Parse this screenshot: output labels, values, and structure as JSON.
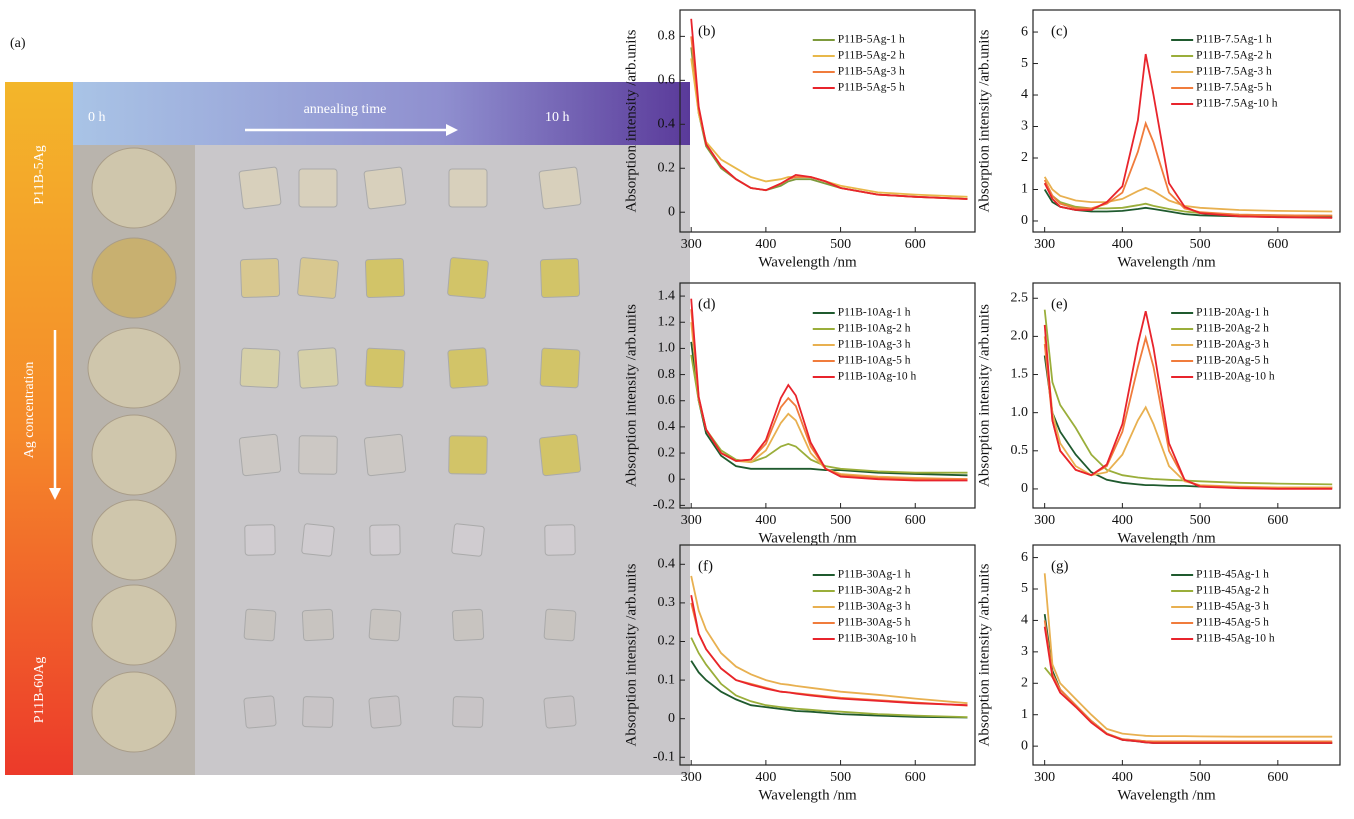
{
  "photo_panel": {
    "panel_label": "(a)",
    "start_time": "0 h",
    "arrow_label": "annealing time",
    "end_time": "10 h",
    "top_sample": "P11B-5Ag",
    "side_arrow_label": "Ag concentration",
    "bottom_sample": "P11B-60Ag"
  },
  "chart_data": [
    {
      "type": "line",
      "panel_label": "(b)",
      "x_label": "Wavelength /nm",
      "y_label": "Absorption intensity /arb.units",
      "x": [
        300,
        310,
        320,
        340,
        360,
        380,
        400,
        420,
        430,
        440,
        460,
        480,
        500,
        550,
        600,
        670
      ],
      "xlim": [
        285,
        680
      ],
      "xticks": [
        300,
        400,
        500,
        600
      ],
      "ylim": [
        -0.09,
        0.92
      ],
      "yticks": [
        0,
        0.2,
        0.4,
        0.6,
        0.8
      ],
      "series": [
        {
          "name": "P11B-5Ag-1 h",
          "color": "#7d9a3c",
          "values": [
            0.75,
            0.45,
            0.3,
            0.2,
            0.15,
            0.11,
            0.1,
            0.12,
            0.14,
            0.15,
            0.15,
            0.13,
            0.11,
            0.08,
            0.07,
            0.06
          ]
        },
        {
          "name": "P11B-5Ag-2 h",
          "color": "#e8b84a",
          "values": [
            0.7,
            0.45,
            0.32,
            0.24,
            0.2,
            0.16,
            0.14,
            0.15,
            0.16,
            0.16,
            0.16,
            0.14,
            0.12,
            0.09,
            0.08,
            0.07
          ]
        },
        {
          "name": "P11B-5Ag-3 h",
          "color": "#f07c3c",
          "values": [
            0.8,
            0.47,
            0.31,
            0.21,
            0.15,
            0.11,
            0.1,
            0.13,
            0.15,
            0.16,
            0.16,
            0.14,
            0.11,
            0.08,
            0.07,
            0.06
          ]
        },
        {
          "name": "P11B-5Ag-5 h",
          "color": "#e8242c",
          "values": [
            0.88,
            0.48,
            0.31,
            0.21,
            0.15,
            0.11,
            0.1,
            0.13,
            0.15,
            0.17,
            0.16,
            0.14,
            0.11,
            0.08,
            0.07,
            0.06
          ]
        }
      ]
    },
    {
      "type": "line",
      "panel_label": "(c)",
      "x_label": "Wavelength /nm",
      "y_label": "Absorption intensity /arb.units",
      "x": [
        300,
        310,
        320,
        340,
        360,
        380,
        400,
        420,
        430,
        440,
        460,
        480,
        500,
        550,
        600,
        670
      ],
      "xlim": [
        285,
        680
      ],
      "xticks": [
        300,
        400,
        500,
        600
      ],
      "ylim": [
        -0.35,
        6.7
      ],
      "yticks": [
        0,
        1,
        2,
        3,
        4,
        5,
        6
      ],
      "series": [
        {
          "name": "P11B-7.5Ag-1 h",
          "color": "#1f5a2e",
          "values": [
            1.0,
            0.6,
            0.45,
            0.35,
            0.3,
            0.3,
            0.32,
            0.38,
            0.42,
            0.38,
            0.3,
            0.22,
            0.18,
            0.15,
            0.13,
            0.12
          ]
        },
        {
          "name": "P11B-7.5Ag-2 h",
          "color": "#9aae3a",
          "values": [
            1.2,
            0.8,
            0.6,
            0.45,
            0.4,
            0.4,
            0.42,
            0.5,
            0.55,
            0.48,
            0.38,
            0.3,
            0.25,
            0.2,
            0.18,
            0.17
          ]
        },
        {
          "name": "P11B-7.5Ag-3 h",
          "color": "#e8b050",
          "values": [
            1.4,
            1.0,
            0.8,
            0.65,
            0.6,
            0.6,
            0.7,
            0.95,
            1.05,
            0.95,
            0.65,
            0.48,
            0.42,
            0.35,
            0.32,
            0.3
          ]
        },
        {
          "name": "P11B-7.5Ag-5 h",
          "color": "#f07c3c",
          "values": [
            1.3,
            0.8,
            0.55,
            0.4,
            0.4,
            0.55,
            0.9,
            2.2,
            3.1,
            2.5,
            0.9,
            0.4,
            0.28,
            0.2,
            0.18,
            0.17
          ]
        },
        {
          "name": "P11B-7.5Ag-10 h",
          "color": "#e8242c",
          "values": [
            1.2,
            0.7,
            0.45,
            0.35,
            0.35,
            0.6,
            1.1,
            3.2,
            5.3,
            4.0,
            1.2,
            0.45,
            0.25,
            0.15,
            0.12,
            0.1
          ]
        }
      ]
    },
    {
      "type": "line",
      "panel_label": "(d)",
      "x_label": "Wavelength /nm",
      "y_label": "Absorption intensity /arb.units",
      "x": [
        300,
        310,
        320,
        340,
        360,
        380,
        400,
        420,
        430,
        440,
        460,
        480,
        500,
        550,
        600,
        670
      ],
      "xlim": [
        285,
        680
      ],
      "xticks": [
        300,
        400,
        500,
        600
      ],
      "ylim": [
        -0.22,
        1.5
      ],
      "yticks": [
        -0.2,
        0,
        0.2,
        0.4,
        0.6,
        0.8,
        {
          "value": 1,
          "label": "1.0"
        },
        1.2,
        1.4
      ],
      "series": [
        {
          "name": "P11B-10Ag-1 h",
          "color": "#1f5a2e",
          "values": [
            1.05,
            0.6,
            0.35,
            0.18,
            0.1,
            0.08,
            0.08,
            0.08,
            0.08,
            0.08,
            0.08,
            0.07,
            0.07,
            0.05,
            0.04,
            0.03
          ]
        },
        {
          "name": "P11B-10Ag-2 h",
          "color": "#9aae3a",
          "values": [
            0.95,
            0.6,
            0.38,
            0.22,
            0.15,
            0.13,
            0.17,
            0.25,
            0.27,
            0.25,
            0.15,
            0.1,
            0.08,
            0.06,
            0.05,
            0.05
          ]
        },
        {
          "name": "P11B-10Ag-3 h",
          "color": "#e8b050",
          "values": [
            1.2,
            0.62,
            0.38,
            0.2,
            0.14,
            0.13,
            0.22,
            0.43,
            0.5,
            0.45,
            0.2,
            0.08,
            0.04,
            0.02,
            0.01,
            0.0
          ]
        },
        {
          "name": "P11B-10Ag-5 h",
          "color": "#f07c3c",
          "values": [
            1.3,
            0.62,
            0.38,
            0.2,
            0.14,
            0.15,
            0.27,
            0.55,
            0.62,
            0.56,
            0.25,
            0.08,
            0.03,
            0.01,
            0.0,
            0.0
          ]
        },
        {
          "name": "P11B-10Ag-10 h",
          "color": "#e8242c",
          "values": [
            1.38,
            0.63,
            0.38,
            0.2,
            0.14,
            0.15,
            0.3,
            0.62,
            0.72,
            0.64,
            0.28,
            0.08,
            0.02,
            0.0,
            -0.01,
            -0.01
          ]
        }
      ]
    },
    {
      "type": "line",
      "panel_label": "(e)",
      "x_label": "Wavelength /nm",
      "y_label": "Absorption intensity /arb.units",
      "x": [
        300,
        310,
        320,
        340,
        360,
        380,
        400,
        420,
        430,
        440,
        460,
        480,
        500,
        550,
        600,
        670
      ],
      "xlim": [
        285,
        680
      ],
      "xticks": [
        300,
        400,
        500,
        600
      ],
      "ylim": [
        -0.25,
        2.7
      ],
      "yticks": [
        0,
        0.5,
        {
          "value": 1,
          "label": "1.0"
        },
        1.5,
        {
          "value": 2,
          "label": "2.0"
        },
        2.5
      ],
      "series": [
        {
          "name": "P11B-20Ag-1 h",
          "color": "#1f5a2e",
          "values": [
            1.75,
            1.0,
            0.75,
            0.45,
            0.22,
            0.12,
            0.08,
            0.06,
            0.05,
            0.05,
            0.04,
            0.04,
            0.03,
            0.02,
            0.02,
            0.02
          ]
        },
        {
          "name": "P11B-20Ag-2 h",
          "color": "#9aae3a",
          "values": [
            2.35,
            1.4,
            1.1,
            0.8,
            0.45,
            0.25,
            0.18,
            0.15,
            0.14,
            0.13,
            0.12,
            0.11,
            0.1,
            0.08,
            0.07,
            0.06
          ]
        },
        {
          "name": "P11B-20Ag-3 h",
          "color": "#e8b050",
          "values": [
            2.0,
            1.0,
            0.6,
            0.3,
            0.18,
            0.22,
            0.45,
            0.9,
            1.07,
            0.85,
            0.3,
            0.1,
            0.05,
            0.03,
            0.02,
            0.02
          ]
        },
        {
          "name": "P11B-20Ag-5 h",
          "color": "#f07c3c",
          "values": [
            1.9,
            0.9,
            0.5,
            0.25,
            0.18,
            0.3,
            0.75,
            1.6,
            1.98,
            1.6,
            0.5,
            0.12,
            0.04,
            0.02,
            0.01,
            0.01
          ]
        },
        {
          "name": "P11B-20Ag-10 h",
          "color": "#e8242c",
          "values": [
            2.15,
            0.9,
            0.5,
            0.25,
            0.18,
            0.32,
            0.85,
            1.9,
            2.33,
            1.85,
            0.6,
            0.12,
            0.03,
            0.01,
            0.0,
            0.0
          ]
        }
      ]
    },
    {
      "type": "line",
      "panel_label": "(f)",
      "x_label": "Wavelength /nm",
      "y_label": "Absorption intensity /arb.units",
      "x": [
        300,
        310,
        320,
        340,
        360,
        380,
        400,
        420,
        430,
        440,
        460,
        480,
        500,
        550,
        600,
        670
      ],
      "xlim": [
        285,
        680
      ],
      "xticks": [
        300,
        400,
        500,
        600
      ],
      "ylim": [
        -0.12,
        0.45
      ],
      "yticks": [
        -0.1,
        0,
        0.1,
        0.2,
        0.3,
        0.4
      ],
      "series": [
        {
          "name": "P11B-30Ag-1 h",
          "color": "#1f5a2e",
          "values": [
            0.15,
            0.12,
            0.1,
            0.07,
            0.05,
            0.035,
            0.03,
            0.025,
            0.023,
            0.02,
            0.018,
            0.015,
            0.012,
            0.008,
            0.005,
            0.003
          ]
        },
        {
          "name": "P11B-30Ag-2 h",
          "color": "#9aae3a",
          "values": [
            0.21,
            0.17,
            0.14,
            0.09,
            0.06,
            0.045,
            0.035,
            0.03,
            0.028,
            0.026,
            0.023,
            0.02,
            0.018,
            0.012,
            0.008,
            0.004
          ]
        },
        {
          "name": "P11B-30Ag-3 h",
          "color": "#e8b050",
          "values": [
            0.37,
            0.28,
            0.23,
            0.17,
            0.135,
            0.115,
            0.1,
            0.09,
            0.088,
            0.085,
            0.08,
            0.075,
            0.07,
            0.062,
            0.052,
            0.04
          ]
        },
        {
          "name": "P11B-30Ag-5 h",
          "color": "#f07c3c",
          "values": [
            0.3,
            0.22,
            0.18,
            0.13,
            0.1,
            0.09,
            0.08,
            0.07,
            0.068,
            0.066,
            0.062,
            0.058,
            0.054,
            0.048,
            0.042,
            0.034
          ]
        },
        {
          "name": "P11B-30Ag-10 h",
          "color": "#e8242c",
          "values": [
            0.32,
            0.22,
            0.18,
            0.13,
            0.1,
            0.088,
            0.078,
            0.07,
            0.068,
            0.065,
            0.06,
            0.056,
            0.052,
            0.046,
            0.04,
            0.035
          ]
        }
      ]
    },
    {
      "type": "line",
      "panel_label": "(g)",
      "x_label": "Wavelength /nm",
      "y_label": "Absorption intensity /arb.units",
      "x": [
        300,
        310,
        320,
        340,
        360,
        380,
        400,
        420,
        430,
        440,
        460,
        480,
        500,
        550,
        600,
        670
      ],
      "xlim": [
        285,
        680
      ],
      "xticks": [
        300,
        400,
        500,
        600
      ],
      "ylim": [
        -0.6,
        6.4
      ],
      "yticks": [
        0,
        1,
        2,
        3,
        4,
        5,
        6
      ],
      "series": [
        {
          "name": "P11B-45Ag-1 h",
          "color": "#1f5a2e",
          "values": [
            4.2,
            2.4,
            1.8,
            1.3,
            0.8,
            0.4,
            0.2,
            0.15,
            0.12,
            0.1,
            0.1,
            0.1,
            0.1,
            0.1,
            0.1,
            0.1
          ]
        },
        {
          "name": "P11B-45Ag-2 h",
          "color": "#9aae3a",
          "values": [
            2.5,
            2.2,
            1.8,
            1.3,
            0.8,
            0.4,
            0.22,
            0.18,
            0.15,
            0.14,
            0.13,
            0.13,
            0.13,
            0.12,
            0.12,
            0.12
          ]
        },
        {
          "name": "P11B-45Ag-3 h",
          "color": "#e8b050",
          "values": [
            5.5,
            2.6,
            2.0,
            1.5,
            1.0,
            0.55,
            0.4,
            0.35,
            0.33,
            0.32,
            0.32,
            0.32,
            0.31,
            0.3,
            0.3,
            0.3
          ]
        },
        {
          "name": "P11B-45Ag-5 h",
          "color": "#f07c3c",
          "values": [
            4.0,
            2.3,
            1.8,
            1.3,
            0.8,
            0.4,
            0.22,
            0.18,
            0.16,
            0.15,
            0.15,
            0.15,
            0.15,
            0.15,
            0.15,
            0.15
          ]
        },
        {
          "name": "P11B-45Ag-10 h",
          "color": "#e8242c",
          "values": [
            3.8,
            2.2,
            1.7,
            1.25,
            0.75,
            0.38,
            0.2,
            0.15,
            0.12,
            0.1,
            0.1,
            0.1,
            0.1,
            0.1,
            0.1,
            0.1
          ]
        }
      ]
    }
  ]
}
